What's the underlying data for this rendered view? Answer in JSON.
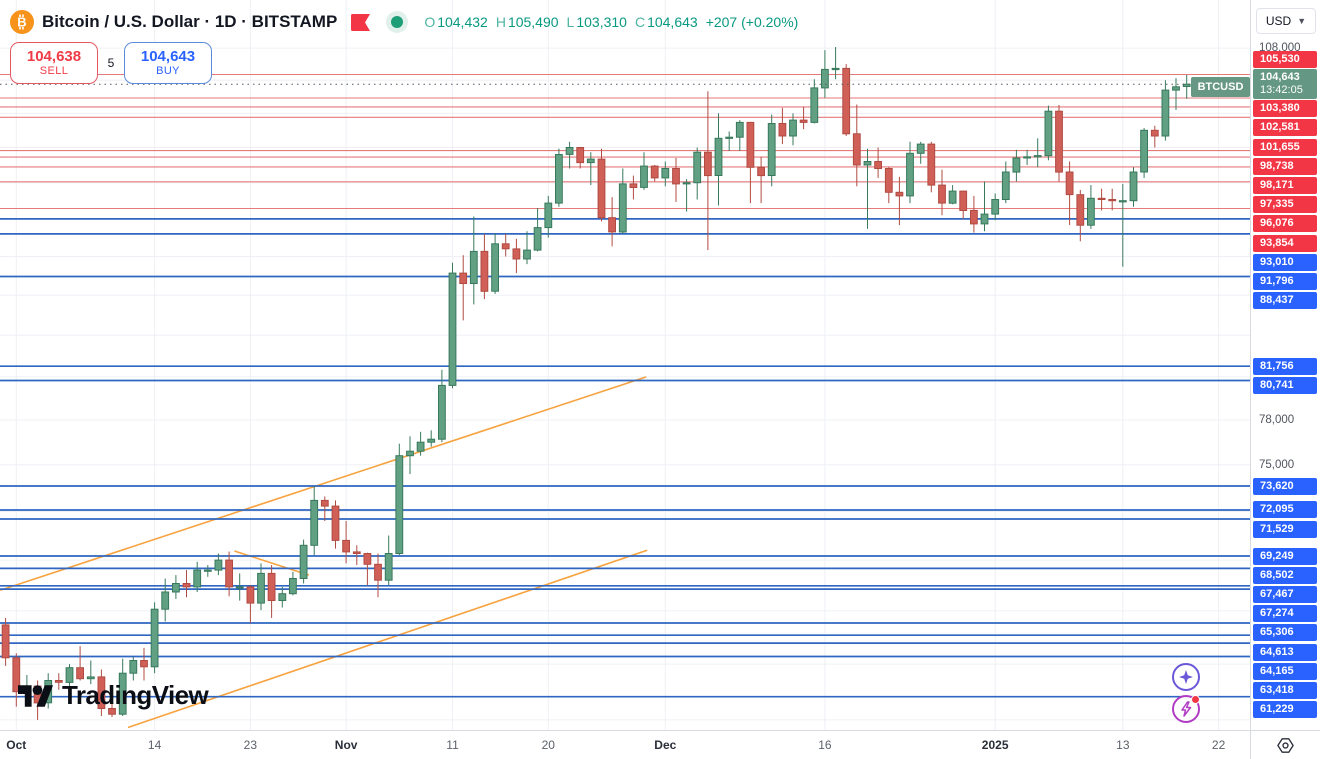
{
  "header": {
    "symbol_title": "Bitcoin / U.S. Dollar · 1D · BITSTAMP",
    "ohlc": {
      "o_label": "O",
      "o": "104,432",
      "h_label": "H",
      "h": "105,490",
      "l_label": "L",
      "l": "103,310",
      "c_label": "C",
      "c": "104,643",
      "change": "+207 (+0.20%)"
    },
    "sell_button": {
      "price": "104,638",
      "label": "SELL"
    },
    "buy_button": {
      "price": "104,643",
      "label": "BUY"
    },
    "spread": "5",
    "icons": {
      "symbol": "bitcoin-icon",
      "flag": "flag-icon",
      "status": "connection-dot"
    }
  },
  "overlays": {
    "symbol_tag": "BTCUSD"
  },
  "logo": {
    "text": "TradingView"
  },
  "price_axis": {
    "currency_button": "USD"
  },
  "corner": {
    "icon": "axis-settings-icon"
  },
  "fabs": [
    {
      "icon": "sparkle-icon",
      "color": "#6a58d8"
    },
    {
      "icon": "lightning-icon",
      "color": "#b13cc4",
      "notification": true
    }
  ],
  "chart_data": {
    "type": "candlestick",
    "symbol": "BTCUSD",
    "exchange": "BITSTAMP",
    "interval": "1D",
    "title": "Bitcoin / U.S. Dollar",
    "scale": "log",
    "grid": true,
    "current": {
      "label": "104,643",
      "countdown": "13:42:05",
      "value": 104643
    },
    "gray_ticks": [
      {
        "label": "108,000",
        "value": 108000
      },
      {
        "label": "78,000",
        "value": 78000
      },
      {
        "label": "75,000",
        "value": 75000
      }
    ],
    "levels": [
      {
        "label": "105,530",
        "value": 105530,
        "type": "resistance"
      },
      {
        "label": "103,380",
        "value": 103380,
        "type": "resistance"
      },
      {
        "label": "102,581",
        "value": 102581,
        "type": "resistance"
      },
      {
        "label": "101,655",
        "value": 101655,
        "type": "resistance"
      },
      {
        "label": "98,738",
        "value": 98738,
        "type": "resistance"
      },
      {
        "label": "98,171",
        "value": 98171,
        "type": "resistance"
      },
      {
        "label": "97,335",
        "value": 97335,
        "type": "resistance"
      },
      {
        "label": "96,076",
        "value": 96076,
        "type": "resistance"
      },
      {
        "label": "93,854",
        "value": 93854,
        "type": "resistance"
      },
      {
        "label": "93,010",
        "value": 93010,
        "type": "support"
      },
      {
        "label": "91,796",
        "value": 91796,
        "type": "support"
      },
      {
        "label": "88,437",
        "value": 88437,
        "type": "support"
      },
      {
        "label": "81,756",
        "value": 81756,
        "type": "support"
      },
      {
        "label": "80,741",
        "value": 80741,
        "type": "support"
      },
      {
        "label": "73,620",
        "value": 73620,
        "type": "support"
      },
      {
        "label": "72,095",
        "value": 72095,
        "type": "support"
      },
      {
        "label": "71,529",
        "value": 71529,
        "type": "support"
      },
      {
        "label": "69,249",
        "value": 69249,
        "type": "support"
      },
      {
        "label": "68,502",
        "value": 68502,
        "type": "support"
      },
      {
        "label": "67,467",
        "value": 67467,
        "type": "support"
      },
      {
        "label": "67,274",
        "value": 67274,
        "type": "support"
      },
      {
        "label": "65,306",
        "value": 65306,
        "type": "support"
      },
      {
        "label": "64,613",
        "value": 64613,
        "type": "support"
      },
      {
        "label": "64,165",
        "value": 64165,
        "type": "support"
      },
      {
        "label": "63,418",
        "value": 63418,
        "type": "support"
      },
      {
        "label": "61,229",
        "value": 61229,
        "type": "support"
      }
    ],
    "trendlines": [
      {
        "x1_day": 0.5,
        "price1": 67200,
        "x2_day": 61.2,
        "price2": 81000
      },
      {
        "x1_day": 12.5,
        "price1": 59600,
        "x2_day": 61.3,
        "price2": 69600
      },
      {
        "x1_day": 22.5,
        "price1": 69550,
        "x2_day": 29.5,
        "price2": 68100
      }
    ],
    "time_ticks": [
      {
        "label": "Oct",
        "day": 2,
        "bold": true
      },
      {
        "label": "14",
        "day": 15,
        "bold": false
      },
      {
        "label": "23",
        "day": 24,
        "bold": false
      },
      {
        "label": "Nov",
        "day": 33,
        "bold": true
      },
      {
        "label": "11",
        "day": 43,
        "bold": false
      },
      {
        "label": "20",
        "day": 52,
        "bold": false
      },
      {
        "label": "Dec",
        "day": 63,
        "bold": true
      },
      {
        "label": "16",
        "day": 78,
        "bold": false
      },
      {
        "label": "2025",
        "day": 94,
        "bold": true
      },
      {
        "label": "13",
        "day": 106,
        "bold": false
      },
      {
        "label": "22",
        "day": 115,
        "bold": false
      }
    ],
    "candles": [
      [
        65600,
        66100,
        64800,
        65200
      ],
      [
        65200,
        65600,
        62900,
        63350
      ],
      [
        63350,
        63600,
        60700,
        61500
      ],
      [
        61500,
        62400,
        60800,
        61800
      ],
      [
        61800,
        62100,
        60000,
        60900
      ],
      [
        60900,
        62500,
        60600,
        62100
      ],
      [
        62100,
        62500,
        61600,
        62000
      ],
      [
        62000,
        63000,
        61700,
        62800
      ],
      [
        62800,
        64000,
        62100,
        62200
      ],
      [
        62200,
        63200,
        61900,
        62300
      ],
      [
        62300,
        62700,
        60200,
        60600
      ],
      [
        60600,
        61400,
        60150,
        60300
      ],
      [
        60300,
        63300,
        60200,
        62500
      ],
      [
        62500,
        63400,
        62100,
        63200
      ],
      [
        63200,
        63900,
        62100,
        62850
      ],
      [
        62850,
        66500,
        62500,
        66100
      ],
      [
        66100,
        67900,
        65400,
        67100
      ],
      [
        67100,
        68100,
        66700,
        67600
      ],
      [
        67600,
        68400,
        66800,
        67400
      ],
      [
        67400,
        68900,
        67100,
        68400
      ],
      [
        68400,
        68700,
        68000,
        68400
      ],
      [
        68400,
        69400,
        68100,
        69000
      ],
      [
        69000,
        69520,
        66850,
        67400
      ],
      [
        67400,
        68200,
        66600,
        67400
      ],
      [
        67400,
        67500,
        65300,
        66450
      ],
      [
        66450,
        68800,
        66050,
        68200
      ],
      [
        68200,
        68700,
        65600,
        66600
      ],
      [
        66600,
        67400,
        66200,
        67000
      ],
      [
        67000,
        68300,
        66900,
        67900
      ],
      [
        67900,
        70250,
        67600,
        69900
      ],
      [
        69900,
        73600,
        69300,
        72700
      ],
      [
        72700,
        72950,
        71400,
        72340
      ],
      [
        72340,
        72700,
        69700,
        70200
      ],
      [
        70200,
        71400,
        68800,
        69500
      ],
      [
        69500,
        69900,
        68700,
        69400
      ],
      [
        69400,
        69450,
        67500,
        68750
      ],
      [
        68750,
        69400,
        66800,
        67800
      ],
      [
        67800,
        70500,
        67500,
        69400
      ],
      [
        69400,
        76400,
        69300,
        75600
      ],
      [
        75600,
        76900,
        74400,
        75900
      ],
      [
        75900,
        77200,
        75600,
        76500
      ],
      [
        76500,
        77300,
        76200,
        76700
      ],
      [
        76700,
        81500,
        76500,
        80400
      ],
      [
        80400,
        89500,
        80200,
        88700
      ],
      [
        88700,
        90100,
        85100,
        87900
      ],
      [
        87900,
        93200,
        86300,
        90400
      ],
      [
        90400,
        91800,
        86700,
        87300
      ],
      [
        87300,
        91850,
        87100,
        91000
      ],
      [
        91000,
        91800,
        90000,
        90600
      ],
      [
        90600,
        91400,
        88700,
        89800
      ],
      [
        89800,
        92000,
        89400,
        90500
      ],
      [
        90500,
        93900,
        90400,
        92300
      ],
      [
        92300,
        94900,
        91500,
        94300
      ],
      [
        94300,
        98900,
        94000,
        98400
      ],
      [
        98400,
        99500,
        97200,
        99000
      ],
      [
        99000,
        99050,
        97200,
        97700
      ],
      [
        97700,
        98600,
        95800,
        98000
      ],
      [
        98000,
        98900,
        92800,
        93100
      ],
      [
        93100,
        94800,
        90800,
        91950
      ],
      [
        91950,
        97200,
        91800,
        95900
      ],
      [
        95900,
        96600,
        94600,
        95600
      ],
      [
        95600,
        98600,
        95400,
        97400
      ],
      [
        97400,
        97500,
        96100,
        96400
      ],
      [
        96400,
        97800,
        95700,
        97200
      ],
      [
        97200,
        98100,
        94400,
        95900
      ],
      [
        95900,
        96300,
        93600,
        96000
      ],
      [
        96000,
        99000,
        94600,
        98600
      ],
      [
        98600,
        104000,
        90500,
        96600
      ],
      [
        96600,
        102000,
        94100,
        99800
      ],
      [
        99800,
        100400,
        98700,
        99900
      ],
      [
        99900,
        101400,
        98700,
        101200
      ],
      [
        101200,
        101250,
        94300,
        97300
      ],
      [
        97300,
        98200,
        94300,
        96600
      ],
      [
        96600,
        101900,
        95700,
        101100
      ],
      [
        101100,
        102500,
        99300,
        100000
      ],
      [
        100000,
        102000,
        99200,
        101400
      ],
      [
        101400,
        102600,
        100600,
        101200
      ],
      [
        101200,
        105100,
        101100,
        104300
      ],
      [
        104300,
        107800,
        103400,
        106000
      ],
      [
        106000,
        108100,
        105100,
        106100
      ],
      [
        106100,
        106500,
        100000,
        100200
      ],
      [
        100200,
        102800,
        95700,
        97500
      ],
      [
        97500,
        98900,
        92200,
        97800
      ],
      [
        97800,
        99000,
        96400,
        97200
      ],
      [
        97200,
        97300,
        94300,
        95200
      ],
      [
        95200,
        96500,
        92500,
        94900
      ],
      [
        94900,
        99500,
        94300,
        98500
      ],
      [
        98500,
        99500,
        97600,
        99300
      ],
      [
        99300,
        99500,
        95200,
        95800
      ],
      [
        95800,
        97100,
        93300,
        94300
      ],
      [
        94300,
        95800,
        94200,
        95300
      ],
      [
        95300,
        95350,
        93000,
        93700
      ],
      [
        93700,
        94900,
        91900,
        92600
      ],
      [
        92600,
        96100,
        92000,
        93400
      ],
      [
        93400,
        95100,
        92900,
        94600
      ],
      [
        94600,
        97800,
        94300,
        96900
      ],
      [
        96900,
        98800,
        96100,
        98100
      ],
      [
        98100,
        98800,
        97500,
        98200
      ],
      [
        98200,
        99800,
        97300,
        98300
      ],
      [
        98300,
        102700,
        97900,
        102200
      ],
      [
        102200,
        102750,
        96100,
        96900
      ],
      [
        96900,
        97800,
        92500,
        95000
      ],
      [
        95000,
        95400,
        91200,
        92500
      ],
      [
        92500,
        95800,
        92200,
        94700
      ],
      [
        94700,
        95500,
        93700,
        94600
      ],
      [
        94600,
        95500,
        93700,
        94500
      ],
      [
        94500,
        95900,
        89200,
        94500
      ],
      [
        94500,
        97300,
        94000,
        96900
      ],
      [
        96900,
        100700,
        96400,
        100500
      ],
      [
        100500,
        100900,
        99000,
        100000
      ],
      [
        100000,
        105000,
        99600,
        104100
      ],
      [
        104100,
        105200,
        102300,
        104400
      ],
      [
        104432,
        105490,
        103310,
        104643
      ]
    ]
  }
}
